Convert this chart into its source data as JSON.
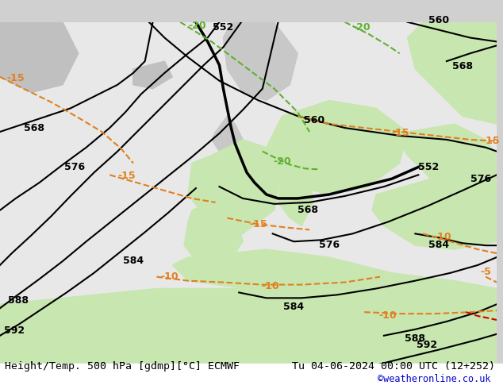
{
  "title_left": "Height/Temp. 500 hPa [gdmp][°C] ECMWF",
  "title_right": "Tu 04-06-2024 00:00 UTC (12+252)",
  "credit": "©weatheronline.co.uk",
  "background_color": "#e8e8e8",
  "land_color_light": "#c8e6b0",
  "land_color_gray": "#c0c0c0",
  "sea_color": "#e8e8e8",
  "contour_color_black": "#000000",
  "contour_color_orange": "#e08020",
  "contour_color_green": "#60b030",
  "contour_color_red": "#cc0000",
  "label_fontsize": 9,
  "title_fontsize": 10,
  "credit_color": "#0000cc"
}
